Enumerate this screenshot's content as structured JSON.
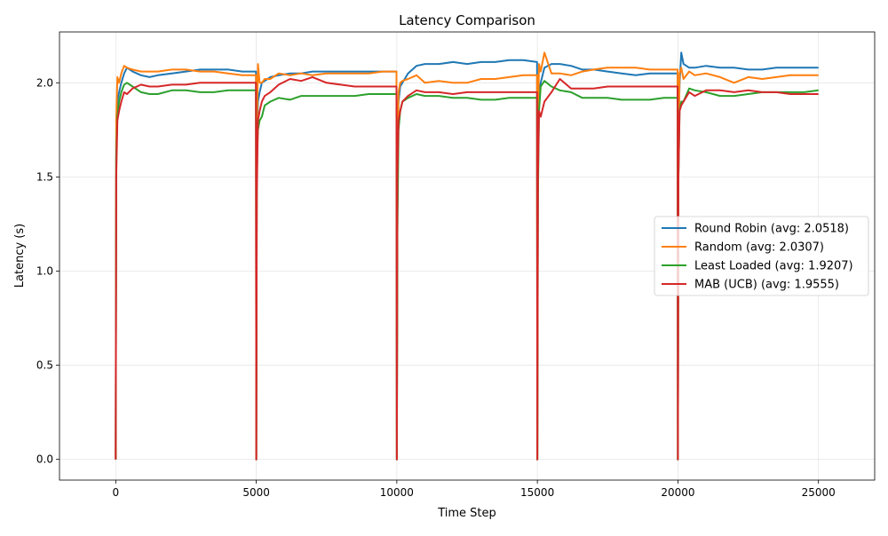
{
  "chart_data": {
    "type": "line",
    "title": "Latency Comparison",
    "xlabel": "Time Step",
    "ylabel": "Latency (s)",
    "xlim": [
      -2000,
      27000
    ],
    "ylim": [
      -0.11,
      2.27
    ],
    "xticks": [
      0,
      5000,
      10000,
      15000,
      20000,
      25000
    ],
    "xtick_labels": [
      "0",
      "5000",
      "10000",
      "15000",
      "20000",
      "25000"
    ],
    "yticks": [
      0.0,
      0.5,
      1.0,
      1.5,
      2.0
    ],
    "ytick_labels": [
      "0.0",
      "0.5",
      "1.0",
      "1.5",
      "2.0"
    ],
    "grid": true,
    "legend_position": "center-right",
    "series": [
      {
        "name": "Round Robin (avg: 2.0518)",
        "color": "#1f77b4",
        "x": [
          0,
          20,
          60,
          120,
          200,
          300,
          400,
          600,
          900,
          1200,
          1500,
          2000,
          2500,
          3000,
          3500,
          4000,
          4500,
          4990,
          5000,
          5020,
          5060,
          5120,
          5200,
          5300,
          5500,
          5800,
          6200,
          6600,
          7000,
          7500,
          8000,
          8500,
          9000,
          9500,
          9990,
          10000,
          10020,
          10060,
          10120,
          10200,
          10400,
          10700,
          11000,
          11500,
          12000,
          12500,
          13000,
          13500,
          14000,
          14500,
          14990,
          15000,
          15020,
          15060,
          15120,
          15250,
          15500,
          15800,
          16200,
          16600,
          17000,
          17500,
          18000,
          18500,
          19000,
          19500,
          19990,
          20000,
          20020,
          20060,
          20120,
          20200,
          20400,
          20600,
          21000,
          21500,
          22000,
          22500,
          23000,
          23500,
          24000,
          24500,
          25000
        ],
        "y": [
          0.0,
          1.7,
          1.9,
          1.95,
          2.0,
          2.05,
          2.08,
          2.06,
          2.04,
          2.03,
          2.04,
          2.05,
          2.06,
          2.07,
          2.07,
          2.07,
          2.06,
          2.06,
          0.0,
          1.7,
          1.9,
          1.95,
          2.0,
          2.01,
          2.03,
          2.04,
          2.05,
          2.05,
          2.06,
          2.06,
          2.06,
          2.06,
          2.06,
          2.06,
          2.06,
          0.0,
          1.65,
          1.9,
          1.98,
          2.0,
          2.05,
          2.09,
          2.1,
          2.1,
          2.11,
          2.1,
          2.11,
          2.11,
          2.12,
          2.12,
          2.11,
          0.0,
          1.8,
          1.95,
          2.0,
          2.08,
          2.1,
          2.1,
          2.09,
          2.07,
          2.07,
          2.06,
          2.05,
          2.04,
          2.05,
          2.05,
          2.05,
          0.0,
          1.7,
          2.0,
          2.16,
          2.1,
          2.08,
          2.08,
          2.09,
          2.08,
          2.08,
          2.07,
          2.07,
          2.08,
          2.08,
          2.08,
          2.08
        ]
      },
      {
        "name": "Random (avg: 2.0307)",
        "color": "#ff7f0e",
        "x": [
          0,
          20,
          60,
          120,
          200,
          300,
          400,
          600,
          900,
          1200,
          1500,
          2000,
          2500,
          3000,
          3500,
          4000,
          4500,
          4990,
          5000,
          5020,
          5060,
          5120,
          5200,
          5300,
          5500,
          5800,
          6200,
          6600,
          7000,
          7500,
          8000,
          8500,
          9000,
          9500,
          9990,
          10000,
          10020,
          10060,
          10120,
          10200,
          10400,
          10700,
          11000,
          11500,
          12000,
          12500,
          13000,
          13500,
          14000,
          14500,
          14990,
          15000,
          15020,
          15060,
          15120,
          15250,
          15500,
          15800,
          16200,
          16600,
          17000,
          17500,
          18000,
          18500,
          19000,
          19500,
          19990,
          20000,
          20020,
          20060,
          20120,
          20200,
          20400,
          20600,
          21000,
          21500,
          22000,
          22500,
          23000,
          23500,
          24000,
          24500,
          25000
        ],
        "y": [
          0.0,
          1.8,
          2.03,
          2.0,
          2.05,
          2.09,
          2.08,
          2.07,
          2.06,
          2.06,
          2.06,
          2.07,
          2.07,
          2.06,
          2.06,
          2.05,
          2.04,
          2.04,
          0.0,
          1.7,
          2.1,
          2.0,
          2.0,
          2.02,
          2.02,
          2.05,
          2.04,
          2.05,
          2.04,
          2.05,
          2.05,
          2.05,
          2.05,
          2.06,
          2.06,
          0.0,
          1.6,
          1.95,
          2.0,
          2.01,
          2.02,
          2.04,
          2.0,
          2.01,
          2.0,
          2.0,
          2.02,
          2.02,
          2.03,
          2.04,
          2.04,
          0.0,
          1.8,
          2.1,
          2.06,
          2.16,
          2.05,
          2.05,
          2.04,
          2.06,
          2.07,
          2.08,
          2.08,
          2.08,
          2.07,
          2.07,
          2.07,
          0.0,
          1.6,
          2.05,
          2.08,
          2.02,
          2.06,
          2.04,
          2.05,
          2.03,
          2.0,
          2.03,
          2.02,
          2.03,
          2.04,
          2.04,
          2.04
        ]
      },
      {
        "name": "Least Loaded (avg: 1.9207)",
        "color": "#2ca02c",
        "x": [
          0,
          20,
          60,
          120,
          200,
          300,
          400,
          600,
          900,
          1200,
          1500,
          2000,
          2500,
          3000,
          3500,
          4000,
          4500,
          4990,
          5000,
          5020,
          5060,
          5120,
          5200,
          5300,
          5500,
          5800,
          6200,
          6600,
          7000,
          7500,
          8000,
          8500,
          9000,
          9500,
          9990,
          10000,
          10020,
          10060,
          10120,
          10200,
          10400,
          10700,
          11000,
          11500,
          12000,
          12500,
          13000,
          13500,
          14000,
          14500,
          14990,
          15000,
          15020,
          15060,
          15120,
          15250,
          15500,
          15800,
          16200,
          16600,
          17000,
          17500,
          18000,
          18500,
          19000,
          19500,
          19990,
          20000,
          20020,
          20060,
          20120,
          20200,
          20400,
          20600,
          21000,
          21500,
          22000,
          22500,
          23000,
          23500,
          24000,
          24500,
          25000
        ],
        "y": [
          0.0,
          1.6,
          1.82,
          1.9,
          1.95,
          1.99,
          2.0,
          1.98,
          1.95,
          1.94,
          1.94,
          1.96,
          1.96,
          1.95,
          1.95,
          1.96,
          1.96,
          1.96,
          0.0,
          1.6,
          1.75,
          1.8,
          1.82,
          1.88,
          1.9,
          1.92,
          1.91,
          1.93,
          1.93,
          1.93,
          1.93,
          1.93,
          1.94,
          1.94,
          1.94,
          0.0,
          1.2,
          1.75,
          1.85,
          1.9,
          1.92,
          1.94,
          1.93,
          1.93,
          1.92,
          1.92,
          1.91,
          1.91,
          1.92,
          1.92,
          1.92,
          0.0,
          1.4,
          1.85,
          1.98,
          2.01,
          1.98,
          1.96,
          1.95,
          1.92,
          1.92,
          1.92,
          1.91,
          1.91,
          1.91,
          1.92,
          1.92,
          0.0,
          1.5,
          1.85,
          1.9,
          1.9,
          1.97,
          1.96,
          1.95,
          1.93,
          1.93,
          1.94,
          1.95,
          1.95,
          1.95,
          1.95,
          1.96
        ]
      },
      {
        "name": "MAB (UCB) (avg: 1.9555)",
        "color": "#d62728",
        "x": [
          0,
          20,
          60,
          120,
          200,
          300,
          400,
          600,
          900,
          1200,
          1500,
          2000,
          2500,
          3000,
          3500,
          4000,
          4500,
          4990,
          5000,
          5020,
          5060,
          5120,
          5200,
          5300,
          5500,
          5800,
          6200,
          6600,
          7000,
          7500,
          8000,
          8500,
          9000,
          9500,
          9990,
          10000,
          10020,
          10060,
          10120,
          10200,
          10400,
          10700,
          11000,
          11500,
          12000,
          12500,
          13000,
          13500,
          14000,
          14500,
          14990,
          15000,
          15020,
          15060,
          15120,
          15250,
          15500,
          15800,
          16200,
          16600,
          17000,
          17500,
          18000,
          18500,
          19000,
          19500,
          19990,
          20000,
          20020,
          20060,
          20120,
          20200,
          20400,
          20600,
          21000,
          21500,
          22000,
          22500,
          23000,
          23500,
          24000,
          24500,
          25000
        ],
        "y": [
          0.0,
          1.5,
          1.8,
          1.85,
          1.9,
          1.95,
          1.94,
          1.97,
          1.99,
          1.98,
          1.98,
          1.99,
          1.99,
          2.0,
          2.0,
          2.0,
          2.0,
          2.0,
          0.0,
          1.4,
          1.8,
          1.85,
          1.9,
          1.93,
          1.95,
          1.99,
          2.02,
          2.01,
          2.03,
          2.0,
          1.99,
          1.98,
          1.98,
          1.98,
          1.98,
          0.0,
          1.5,
          1.8,
          1.85,
          1.9,
          1.93,
          1.96,
          1.95,
          1.95,
          1.94,
          1.95,
          1.95,
          1.95,
          1.95,
          1.95,
          1.95,
          0.0,
          1.5,
          1.85,
          1.82,
          1.9,
          1.95,
          2.02,
          1.97,
          1.97,
          1.97,
          1.98,
          1.98,
          1.98,
          1.98,
          1.98,
          1.98,
          0.0,
          1.5,
          1.85,
          1.88,
          1.9,
          1.95,
          1.93,
          1.96,
          1.96,
          1.95,
          1.96,
          1.95,
          1.95,
          1.94,
          1.94,
          1.94
        ]
      }
    ]
  }
}
